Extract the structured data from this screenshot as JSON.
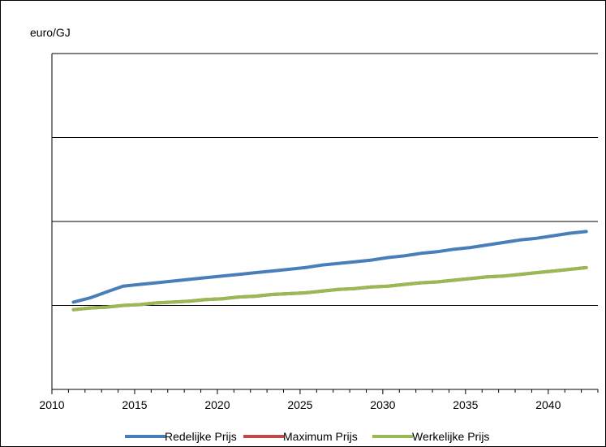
{
  "chart_data": {
    "type": "line",
    "title": "",
    "unit_label": "euro/GJ",
    "xlabel": "",
    "ylabel": "",
    "xlim": [
      2010,
      2043
    ],
    "ylim": [
      0,
      4
    ],
    "ygrid": [
      1,
      2,
      3,
      4
    ],
    "x_ticks": [
      2010,
      2015,
      2020,
      2025,
      2030,
      2035,
      2040
    ],
    "grid": true,
    "legend_position": "bottom",
    "x": [
      2011.3,
      2012.3,
      2013.3,
      2014.3,
      2015.3,
      2016.3,
      2017.3,
      2018.3,
      2019.3,
      2020.3,
      2021.3,
      2022.3,
      2023.3,
      2024.3,
      2025.3,
      2026.3,
      2027.3,
      2028.3,
      2029.3,
      2030.3,
      2031.3,
      2032.3,
      2033.3,
      2034.3,
      2035.3,
      2036.3,
      2037.3,
      2038.3,
      2039.3,
      2040.3,
      2041.3,
      2042.3
    ],
    "series": [
      {
        "name": "Redelijke Prijs",
        "color": "#4a7ebb",
        "values": [
          1.04,
          1.09,
          1.16,
          1.23,
          1.25,
          1.27,
          1.29,
          1.31,
          1.33,
          1.35,
          1.37,
          1.39,
          1.41,
          1.43,
          1.45,
          1.48,
          1.5,
          1.52,
          1.54,
          1.57,
          1.59,
          1.62,
          1.64,
          1.67,
          1.69,
          1.72,
          1.75,
          1.78,
          1.8,
          1.83,
          1.86,
          1.88
        ]
      },
      {
        "name": "Maximum Prijs",
        "color": "#be4b48",
        "values": [
          0.95,
          0.97,
          0.98,
          1.0,
          1.01,
          1.03,
          1.04,
          1.05,
          1.07,
          1.08,
          1.1,
          1.11,
          1.13,
          1.14,
          1.15,
          1.17,
          1.19,
          1.2,
          1.22,
          1.23,
          1.25,
          1.27,
          1.28,
          1.3,
          1.32,
          1.34,
          1.35,
          1.37,
          1.39,
          1.41,
          1.43,
          1.45
        ]
      },
      {
        "name": "Werkelijke Prijs",
        "color": "#98b954",
        "values": [
          0.95,
          0.97,
          0.98,
          1.0,
          1.01,
          1.03,
          1.04,
          1.05,
          1.07,
          1.08,
          1.1,
          1.11,
          1.13,
          1.14,
          1.15,
          1.17,
          1.19,
          1.2,
          1.22,
          1.23,
          1.25,
          1.27,
          1.28,
          1.3,
          1.32,
          1.34,
          1.35,
          1.37,
          1.39,
          1.41,
          1.43,
          1.45
        ]
      }
    ]
  }
}
